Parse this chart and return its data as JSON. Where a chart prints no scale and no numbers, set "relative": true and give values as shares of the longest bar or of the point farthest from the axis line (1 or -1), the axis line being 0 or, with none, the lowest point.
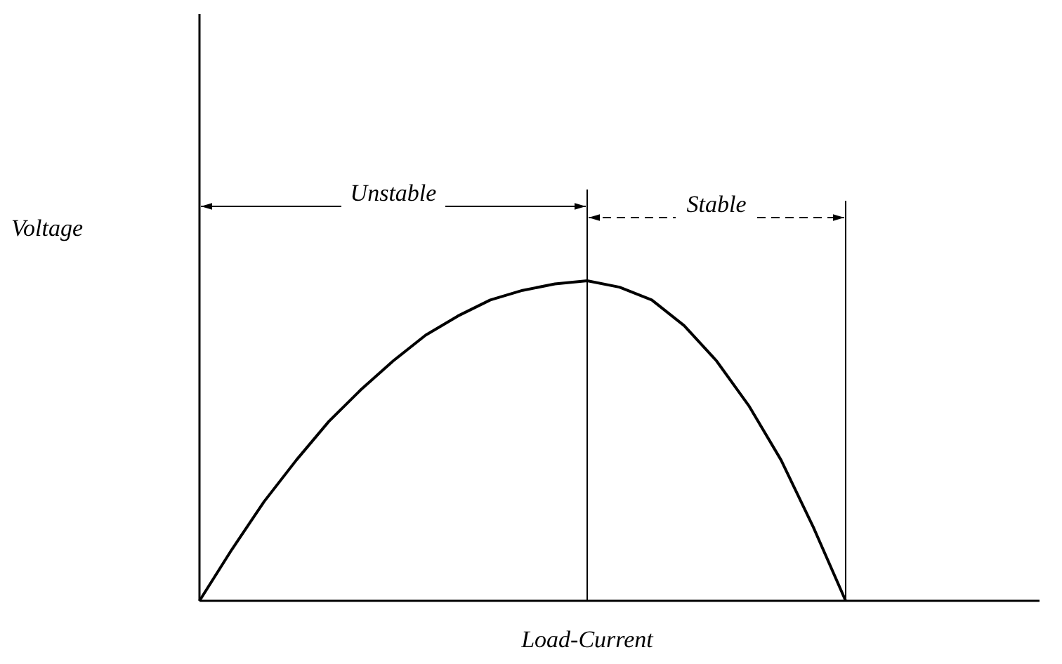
{
  "chart_data": {
    "type": "line",
    "relative": true,
    "xlabel": "Load-Current",
    "color": "#000000",
    "marker": "none",
    "line_style": "solid",
    "grid": false,
    "legend": false,
    "categories": [
      null,
      null,
      null,
      null,
      null,
      null,
      null,
      null,
      null,
      null,
      null,
      null,
      null,
      null,
      null,
      null,
      null,
      null,
      null,
      null,
      null,
      null,
      null,
      null,
      null,
      null,
      null
    ],
    "values": [
      0,
      0.16,
      0.31,
      0.44,
      0.56,
      0.66,
      0.75,
      0.83,
      0.89,
      0.94,
      0.97,
      0.99,
      1,
      0.98,
      0.94,
      0.86,
      0.75,
      0.61,
      0.44,
      0.23,
      0,
      null,
      null,
      null,
      null,
      null,
      null
    ],
    "annotations": [
      "Voltage",
      "Unstable",
      "Stable"
    ]
  }
}
